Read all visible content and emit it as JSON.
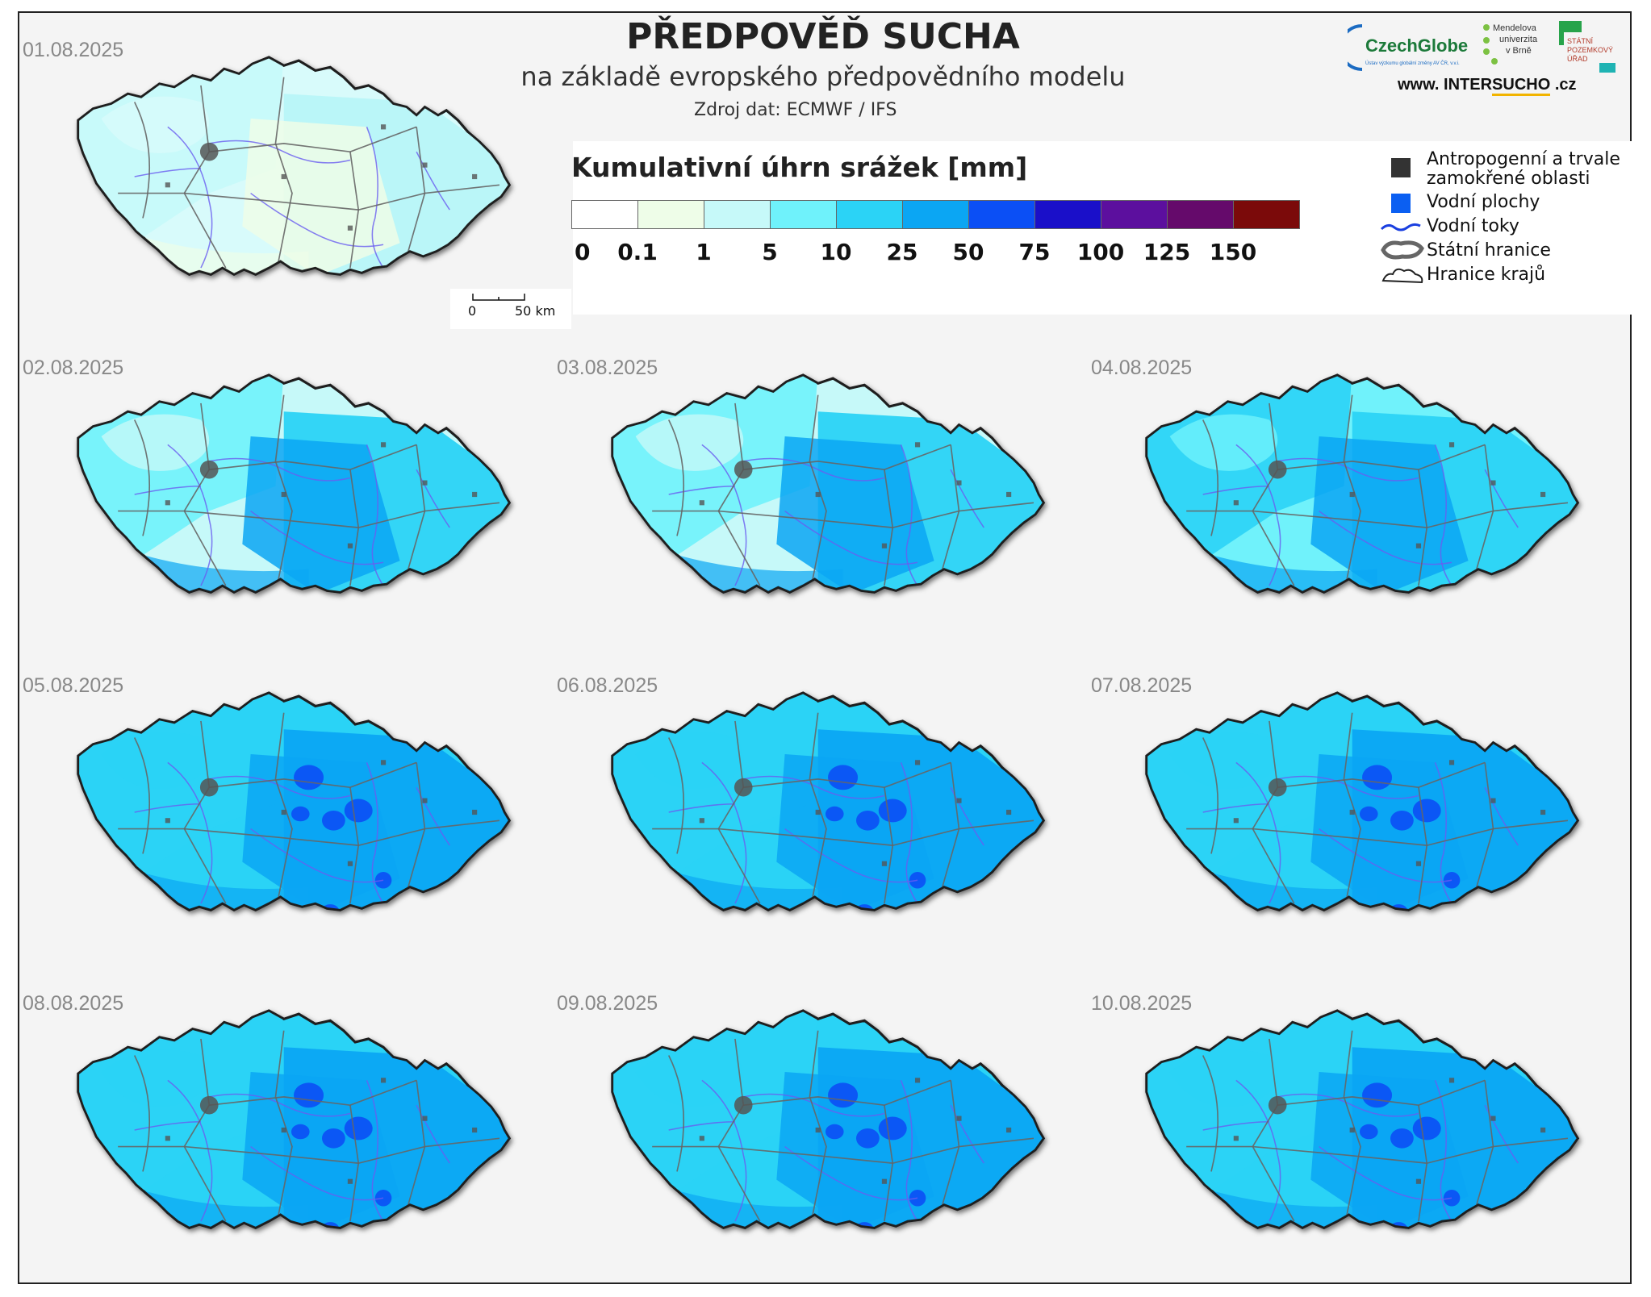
{
  "header": {
    "title": "PŘEDPOVĚĎ SUCHA",
    "subtitle": "na základě evropského předpovědního modelu",
    "source": "Zdroj dat: ECMWF / IFS"
  },
  "logos": {
    "czechglobe": "CzechGlobe",
    "czechglobe_sub": "Ústav výzkumu globální změny AV ČR, v.v.i.",
    "mendel_line1": "Mendelova",
    "mendel_line2": "univerzita",
    "mendel_line3": "v Brně",
    "spu_line1": "STÁTNÍ",
    "spu_line2": "POZEMKOVÝ",
    "spu_line3": "ÚŘAD",
    "website_prefix": "www. INTER",
    "website_bold": "SUCHO",
    "website_suffix": " .cz"
  },
  "legend": {
    "title": "Kumulativní úhrn srážek [mm]",
    "ticks": [
      "0",
      "0.1",
      "1",
      "5",
      "10",
      "25",
      "50",
      "75",
      "100",
      "125",
      "150"
    ],
    "colors": [
      "#ffffff",
      "#eefde8",
      "#c6f9f9",
      "#6ff2fb",
      "#2bd3f6",
      "#0ba6f3",
      "#0b4ff5",
      "#1a0fc9",
      "#5c0f9e",
      "#650a6b",
      "#7b0a0a"
    ],
    "items": [
      {
        "label_line1": "Antropogenní a trvale",
        "label_line2": "zamokřené oblasti",
        "icon": "dark-square-icon",
        "color": "#333333"
      },
      {
        "label_line1": "Vodní plochy",
        "icon": "blue-square-icon",
        "color": "#0b5ff2"
      },
      {
        "label_line1": "Vodní toky",
        "icon": "river-line-icon",
        "color": "#1a3fe0"
      },
      {
        "label_line1": "Státní hranice",
        "icon": "state-border-icon",
        "color": "#666666"
      },
      {
        "label_line1": "Hranice krajů",
        "icon": "region-border-icon",
        "color": "#222222"
      }
    ]
  },
  "scalebar": {
    "start": "0",
    "end": "50 km"
  },
  "maps": [
    {
      "date": "01.08.2025",
      "level": 1,
      "accent": 0
    },
    {
      "date": "02.08.2025",
      "level": 2,
      "accent": 0
    },
    {
      "date": "03.08.2025",
      "level": 2,
      "accent": 0
    },
    {
      "date": "04.08.2025",
      "level": 3,
      "accent": 0
    },
    {
      "date": "05.08.2025",
      "level": 4,
      "accent": 1
    },
    {
      "date": "06.08.2025",
      "level": 4,
      "accent": 1
    },
    {
      "date": "07.08.2025",
      "level": 4,
      "accent": 1
    },
    {
      "date": "08.08.2025",
      "level": 4,
      "accent": 1
    },
    {
      "date": "09.08.2025",
      "level": 4,
      "accent": 1
    },
    {
      "date": "10.08.2025",
      "level": 4,
      "accent": 1
    }
  ]
}
